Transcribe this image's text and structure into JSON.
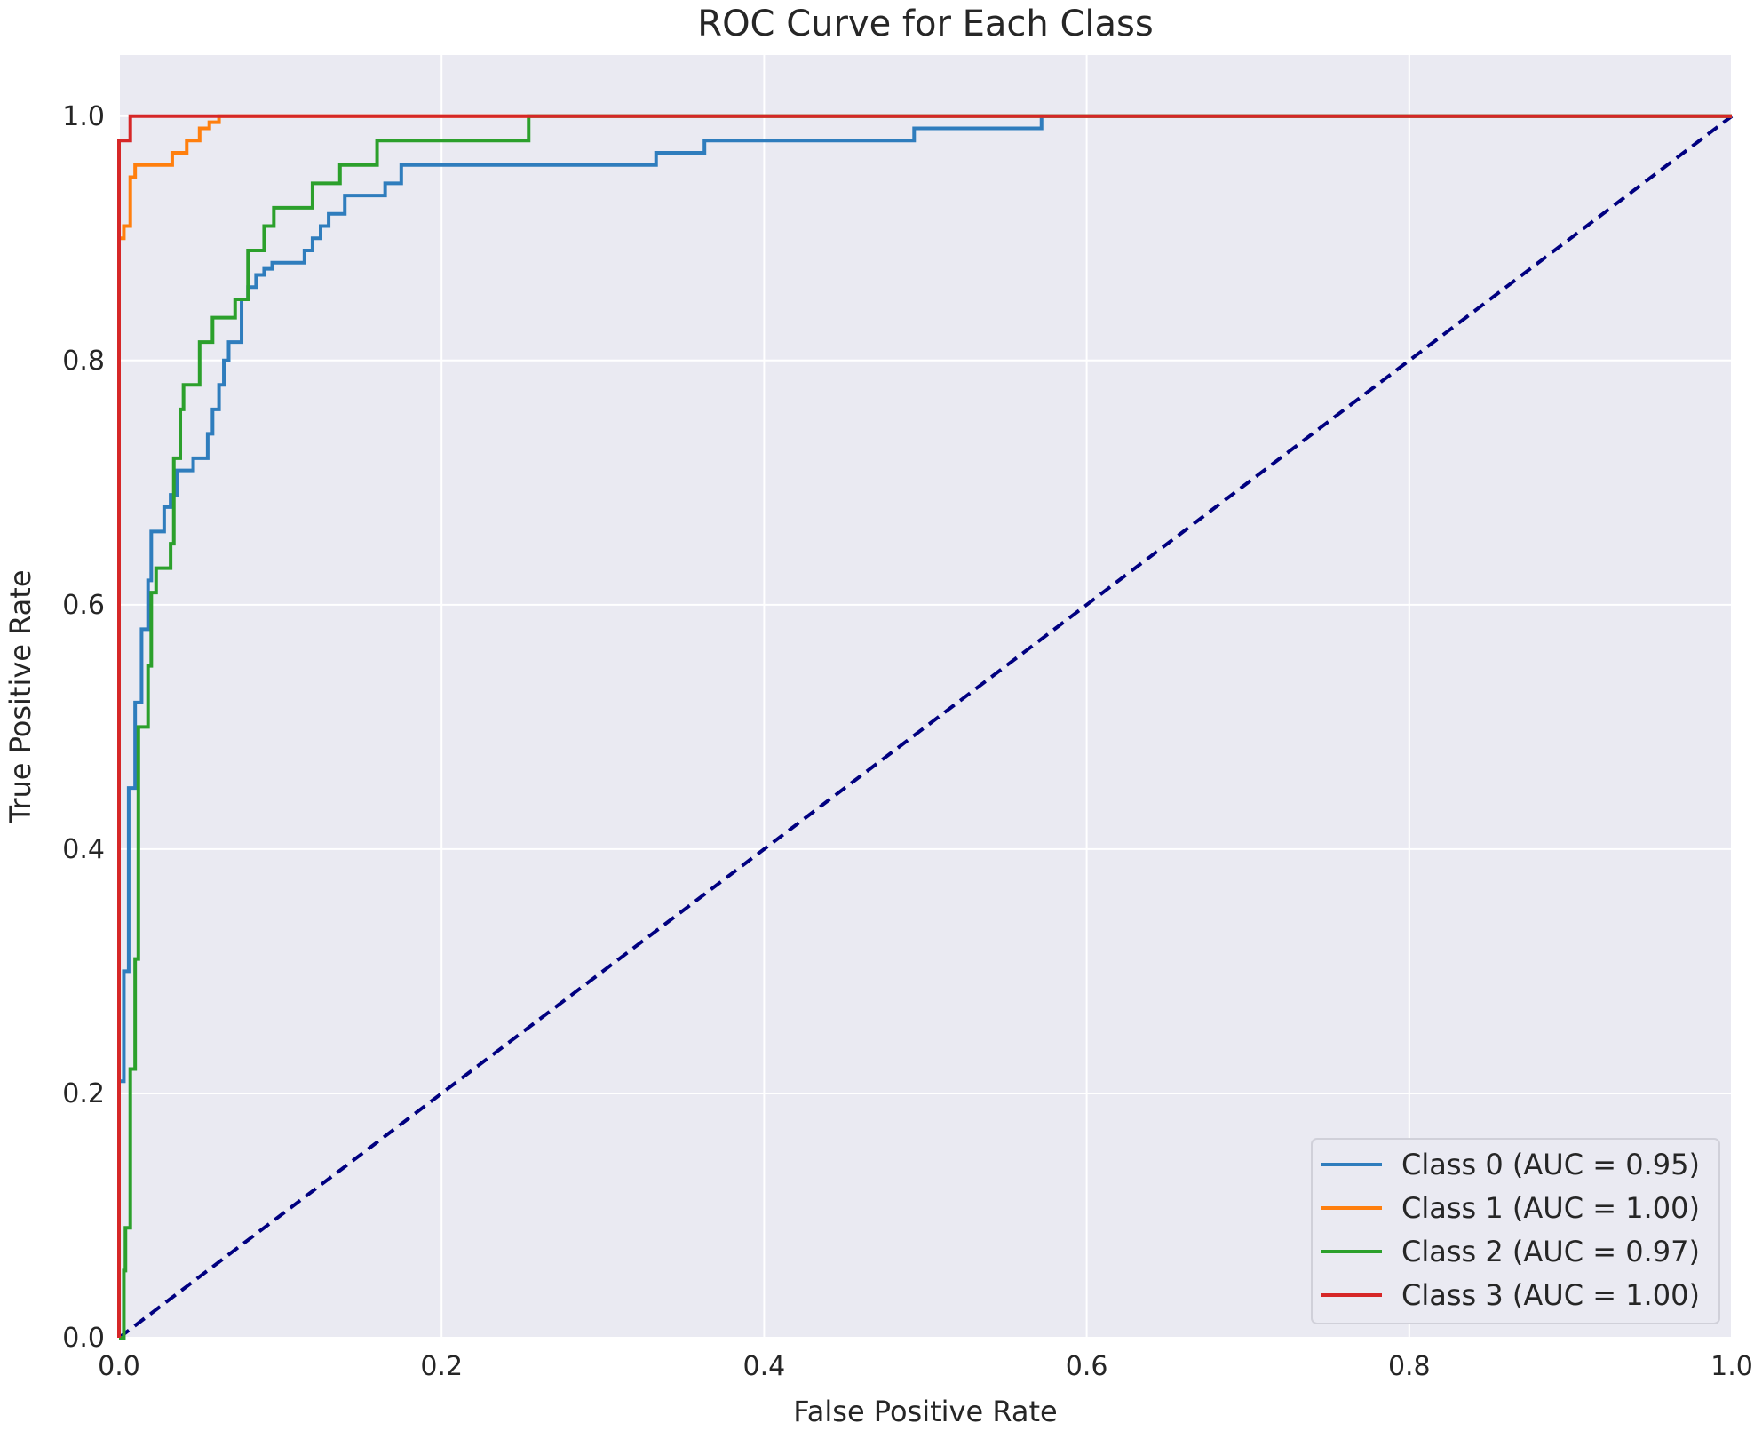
{
  "colors": {
    "plot_background": "#eaeaf2",
    "grid": "#ffffff",
    "class0": "#2f7dbd",
    "class1": "#ff7f0e",
    "class2": "#2ca02c",
    "class3": "#d62728",
    "diagonal": "#000080"
  },
  "chart_data": {
    "type": "line",
    "title": "ROC Curve for Each Class",
    "xlabel": "False Positive Rate",
    "ylabel": "True Positive Rate",
    "xlim": [
      0.0,
      1.0
    ],
    "ylim": [
      0.0,
      1.05
    ],
    "xticks": [
      "0.0",
      "0.2",
      "0.4",
      "0.6",
      "0.8",
      "1.0"
    ],
    "yticks": [
      "0.0",
      "0.2",
      "0.4",
      "0.6",
      "0.8",
      "1.0"
    ],
    "grid": true,
    "legend_position": "lower-right",
    "series": [
      {
        "name": "Class 0 (AUC = 0.95)",
        "color": "#2f7dbd",
        "style": "solid",
        "points": [
          [
            0.0,
            0.0
          ],
          [
            0.0,
            0.21
          ],
          [
            0.003,
            0.21
          ],
          [
            0.003,
            0.3
          ],
          [
            0.006,
            0.3
          ],
          [
            0.006,
            0.45
          ],
          [
            0.01,
            0.45
          ],
          [
            0.01,
            0.52
          ],
          [
            0.014,
            0.52
          ],
          [
            0.014,
            0.58
          ],
          [
            0.018,
            0.58
          ],
          [
            0.018,
            0.62
          ],
          [
            0.02,
            0.62
          ],
          [
            0.02,
            0.66
          ],
          [
            0.028,
            0.66
          ],
          [
            0.028,
            0.68
          ],
          [
            0.032,
            0.68
          ],
          [
            0.032,
            0.69
          ],
          [
            0.036,
            0.69
          ],
          [
            0.036,
            0.71
          ],
          [
            0.046,
            0.71
          ],
          [
            0.046,
            0.72
          ],
          [
            0.055,
            0.72
          ],
          [
            0.055,
            0.74
          ],
          [
            0.058,
            0.74
          ],
          [
            0.058,
            0.76
          ],
          [
            0.062,
            0.76
          ],
          [
            0.062,
            0.78
          ],
          [
            0.065,
            0.78
          ],
          [
            0.065,
            0.8
          ],
          [
            0.068,
            0.8
          ],
          [
            0.068,
            0.815
          ],
          [
            0.076,
            0.815
          ],
          [
            0.076,
            0.85
          ],
          [
            0.08,
            0.85
          ],
          [
            0.08,
            0.86
          ],
          [
            0.085,
            0.86
          ],
          [
            0.085,
            0.87
          ],
          [
            0.09,
            0.87
          ],
          [
            0.09,
            0.875
          ],
          [
            0.095,
            0.875
          ],
          [
            0.095,
            0.88
          ],
          [
            0.115,
            0.88
          ],
          [
            0.115,
            0.89
          ],
          [
            0.12,
            0.89
          ],
          [
            0.12,
            0.9
          ],
          [
            0.125,
            0.9
          ],
          [
            0.125,
            0.91
          ],
          [
            0.13,
            0.91
          ],
          [
            0.13,
            0.92
          ],
          [
            0.14,
            0.92
          ],
          [
            0.14,
            0.935
          ],
          [
            0.165,
            0.935
          ],
          [
            0.165,
            0.945
          ],
          [
            0.175,
            0.945
          ],
          [
            0.175,
            0.96
          ],
          [
            0.333,
            0.96
          ],
          [
            0.333,
            0.97
          ],
          [
            0.363,
            0.97
          ],
          [
            0.363,
            0.98
          ],
          [
            0.493,
            0.98
          ],
          [
            0.493,
            0.99
          ],
          [
            0.572,
            0.99
          ],
          [
            0.572,
            1.0
          ],
          [
            1.0,
            1.0
          ]
        ]
      },
      {
        "name": "Class 1 (AUC = 1.00)",
        "color": "#ff7f0e",
        "style": "solid",
        "points": [
          [
            0.0,
            0.0
          ],
          [
            0.0,
            0.9
          ],
          [
            0.003,
            0.9
          ],
          [
            0.003,
            0.91
          ],
          [
            0.007,
            0.91
          ],
          [
            0.007,
            0.95
          ],
          [
            0.01,
            0.95
          ],
          [
            0.01,
            0.96
          ],
          [
            0.033,
            0.96
          ],
          [
            0.033,
            0.97
          ],
          [
            0.042,
            0.97
          ],
          [
            0.042,
            0.98
          ],
          [
            0.05,
            0.98
          ],
          [
            0.05,
            0.99
          ],
          [
            0.056,
            0.99
          ],
          [
            0.056,
            0.995
          ],
          [
            0.062,
            0.995
          ],
          [
            0.062,
            1.0
          ],
          [
            1.0,
            1.0
          ]
        ]
      },
      {
        "name": "Class 2 (AUC = 0.97)",
        "color": "#2ca02c",
        "style": "solid",
        "points": [
          [
            0.0,
            0.0
          ],
          [
            0.003,
            0.0
          ],
          [
            0.003,
            0.055
          ],
          [
            0.004,
            0.055
          ],
          [
            0.004,
            0.09
          ],
          [
            0.007,
            0.09
          ],
          [
            0.007,
            0.22
          ],
          [
            0.01,
            0.22
          ],
          [
            0.01,
            0.31
          ],
          [
            0.012,
            0.31
          ],
          [
            0.012,
            0.5
          ],
          [
            0.018,
            0.5
          ],
          [
            0.018,
            0.55
          ],
          [
            0.02,
            0.55
          ],
          [
            0.02,
            0.61
          ],
          [
            0.023,
            0.61
          ],
          [
            0.023,
            0.63
          ],
          [
            0.032,
            0.63
          ],
          [
            0.032,
            0.65
          ],
          [
            0.034,
            0.65
          ],
          [
            0.034,
            0.72
          ],
          [
            0.038,
            0.72
          ],
          [
            0.038,
            0.76
          ],
          [
            0.04,
            0.76
          ],
          [
            0.04,
            0.78
          ],
          [
            0.05,
            0.78
          ],
          [
            0.05,
            0.815
          ],
          [
            0.058,
            0.815
          ],
          [
            0.058,
            0.835
          ],
          [
            0.072,
            0.835
          ],
          [
            0.072,
            0.85
          ],
          [
            0.08,
            0.85
          ],
          [
            0.08,
            0.89
          ],
          [
            0.09,
            0.89
          ],
          [
            0.09,
            0.91
          ],
          [
            0.096,
            0.91
          ],
          [
            0.096,
            0.925
          ],
          [
            0.12,
            0.925
          ],
          [
            0.12,
            0.945
          ],
          [
            0.137,
            0.945
          ],
          [
            0.137,
            0.96
          ],
          [
            0.16,
            0.96
          ],
          [
            0.16,
            0.98
          ],
          [
            0.254,
            0.98
          ],
          [
            0.254,
            1.0
          ],
          [
            1.0,
            1.0
          ]
        ]
      },
      {
        "name": "Class 3 (AUC = 1.00)",
        "color": "#d62728",
        "style": "solid",
        "points": [
          [
            0.0,
            0.0
          ],
          [
            0.0,
            0.98
          ],
          [
            0.007,
            0.98
          ],
          [
            0.007,
            1.0
          ],
          [
            1.0,
            1.0
          ]
        ]
      },
      {
        "color": "#000080",
        "style": "dashed",
        "points": [
          [
            0.0,
            0.0
          ],
          [
            1.0,
            1.0
          ]
        ]
      }
    ]
  }
}
